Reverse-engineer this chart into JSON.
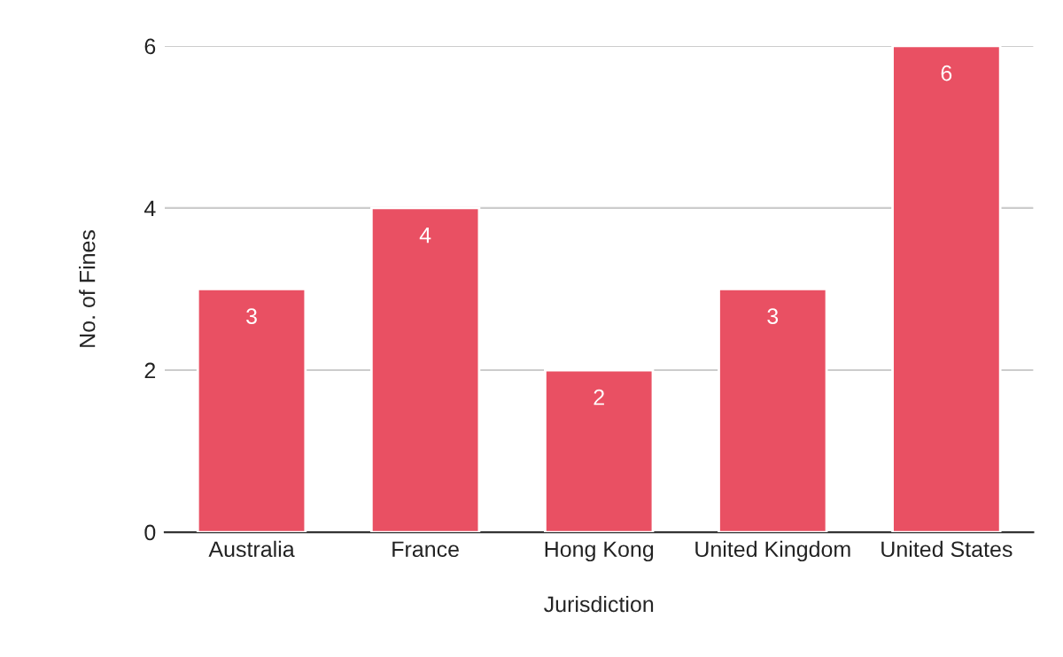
{
  "chart_data": {
    "type": "bar",
    "xlabel": "Jurisdiction",
    "ylabel": "No. of Fines",
    "categories": [
      "Australia",
      "France",
      "Hong Kong",
      "United Kingdom",
      "United States"
    ],
    "values": [
      3,
      4,
      2,
      3,
      6
    ],
    "color": "#e95063",
    "ylim": [
      0,
      6
    ],
    "yticks": [
      0,
      2,
      4,
      6
    ],
    "grid": "y",
    "data_labels": true
  }
}
